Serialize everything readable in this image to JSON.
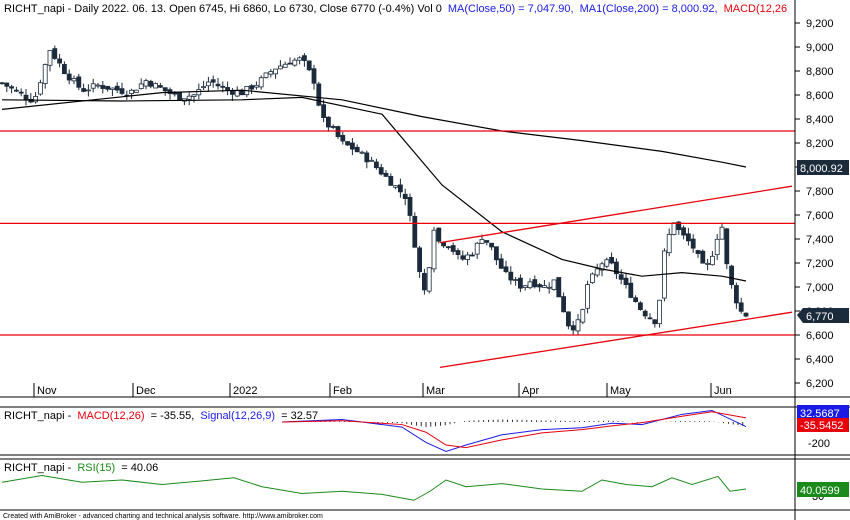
{
  "header": {
    "price_prefix": "RICHT_napi - Daily 2022. 06. 13. Open 6745, Hi 6860, Lo 6730, Close 6770 (-0.4%) Vol 0",
    "ma50": "MA(Close,50) = 7,047.90,",
    "ma200": "MA1(Close,200) = 8,000.92,",
    "macd_cut": "MACD(12,26"
  },
  "macd_header": {
    "prefix": "RICHT_napi -",
    "macd_label": "MACD(12,26)",
    "macd_value": "= -35.55,",
    "signal_label": "Signal(12,26,9)",
    "signal_value": "= 32.57"
  },
  "rsi_header": {
    "prefix": "RICHT_napi -",
    "rsi_label": "RSI(15)",
    "rsi_value": "= 40.06"
  },
  "footer": "Created with AmiBroker - advanced charting and technical analysis software. http://www.amibroker.com",
  "badges": {
    "ma200": "8,000.92",
    "close": "6,770",
    "signal": "32.5687",
    "macd": "-35.5452",
    "rsi": "40.0599"
  },
  "colors": {
    "background": "#ffffff",
    "up_candle": "#ffffff",
    "down_candle": "#1c2b3c",
    "ma_line": "#000000",
    "support_resistance": "#e8000b",
    "macd_line": "#1a1ae6",
    "signal_line": "#e8000b",
    "rsi_line": "#1a8a1a",
    "badge_dark": "#1c2b3c",
    "badge_blue": "#1a1ae6",
    "badge_red": "#e8000b",
    "badge_green": "#1a8a1a"
  },
  "chart_data": [
    {
      "type": "candlestick",
      "title": "RICHT_napi - Daily",
      "x_labels": [
        "Nov",
        "Dec",
        "2022",
        "Feb",
        "Mar",
        "Apr",
        "May",
        "Jun"
      ],
      "y_ticks": [
        "9,200",
        "9,000",
        "8,800",
        "8,600",
        "8,400",
        "8,200",
        "8,000",
        "7,800",
        "7,600",
        "7,400",
        "7,200",
        "7,000",
        "6,800",
        "6,600",
        "6,400",
        "6,200"
      ],
      "ylim": [
        6100,
        9300
      ],
      "series": [
        {
          "name": "RICHT_napi",
          "points": [
            [
              0,
              8700
            ],
            [
              8,
              8620
            ],
            [
              16,
              8550
            ],
            [
              24,
              8980
            ],
            [
              32,
              8780
            ],
            [
              40,
              8640
            ],
            [
              48,
              8680
            ],
            [
              56,
              8650
            ],
            [
              64,
              8620
            ],
            [
              72,
              8720
            ],
            [
              80,
              8650
            ],
            [
              88,
              8580
            ],
            [
              96,
              8600
            ],
            [
              104,
              8720
            ],
            [
              112,
              8640
            ],
            [
              120,
              8620
            ],
            [
              128,
              8700
            ],
            [
              136,
              8820
            ],
            [
              144,
              8880
            ],
            [
              150,
              8900
            ],
            [
              156,
              8720
            ],
            [
              160,
              8400
            ],
            [
              166,
              8300
            ],
            [
              170,
              8200
            ],
            [
              176,
              8150
            ],
            [
              184,
              8050
            ],
            [
              190,
              7950
            ],
            [
              196,
              7850
            ],
            [
              202,
              7750
            ],
            [
              206,
              7400
            ],
            [
              210,
              7000
            ],
            [
              212,
              6950
            ],
            [
              214,
              7250
            ],
            [
              216,
              7500
            ],
            [
              219,
              7350
            ],
            [
              222,
              7380
            ],
            [
              226,
              7300
            ],
            [
              229,
              7220
            ],
            [
              232,
              7250
            ],
            [
              236,
              7300
            ],
            [
              240,
              7420
            ],
            [
              244,
              7350
            ],
            [
              248,
              7200
            ],
            [
              252,
              7100
            ],
            [
              256,
              7050
            ],
            [
              260,
              7000
            ],
            [
              264,
              7050
            ],
            [
              268,
              7020
            ],
            [
              272,
              7000
            ],
            [
              276,
              7050
            ],
            [
              280,
              6850
            ],
            [
              284,
              6650
            ],
            [
              288,
              6700
            ],
            [
              290,
              6750
            ],
            [
              292,
              7000
            ],
            [
              296,
              7100
            ],
            [
              300,
              7200
            ],
            [
              304,
              7200
            ],
            [
              308,
              7100
            ],
            [
              312,
              7000
            ],
            [
              316,
              6900
            ],
            [
              320,
              6800
            ],
            [
              324,
              6750
            ],
            [
              328,
              6700
            ],
            [
              330,
              7200
            ],
            [
              333,
              7400
            ],
            [
              336,
              7550
            ],
            [
              339,
              7450
            ],
            [
              342,
              7400
            ],
            [
              345,
              7350
            ],
            [
              348,
              7250
            ],
            [
              351,
              7150
            ],
            [
              354,
              7200
            ],
            [
              357,
              7400
            ],
            [
              360,
              7500
            ],
            [
              363,
              7100
            ],
            [
              366,
              6950
            ],
            [
              369,
              6800
            ],
            [
              372,
              6770
            ]
          ]
        },
        {
          "name": "MA(Close,50)",
          "points": [
            [
              0,
              8560
            ],
            [
              60,
              8550
            ],
            [
              120,
              8560
            ],
            [
              150,
              8580
            ],
            [
              190,
              8440
            ],
            [
              220,
              7850
            ],
            [
              250,
              7460
            ],
            [
              280,
              7230
            ],
            [
              300,
              7150
            ],
            [
              320,
              7090
            ],
            [
              340,
              7120
            ],
            [
              360,
              7090
            ],
            [
              372,
              7050
            ]
          ]
        },
        {
          "name": "MA1(Close,200)",
          "points": [
            [
              0,
              8480
            ],
            [
              80,
              8620
            ],
            [
              120,
              8640
            ],
            [
              170,
              8560
            ],
            [
              210,
              8420
            ],
            [
              250,
              8300
            ],
            [
              290,
              8220
            ],
            [
              330,
              8130
            ],
            [
              360,
              8040
            ],
            [
              372,
              8000
            ]
          ]
        }
      ],
      "horizontal_levels": [
        8300,
        7530,
        6600
      ],
      "trend_channel": {
        "upper": [
          [
            219,
            7370
          ],
          [
            395,
            7840
          ]
        ],
        "lower": [
          [
            219,
            6330
          ],
          [
            395,
            6790
          ]
        ]
      }
    },
    {
      "type": "line",
      "title": "MACD",
      "y_ticks": [
        "-200"
      ],
      "series": [
        {
          "name": "MACD(12,26)",
          "points": [
            [
              140,
              0
            ],
            [
              170,
              20
            ],
            [
              200,
              -40
            ],
            [
              212,
              -160
            ],
            [
              222,
              -230
            ],
            [
              232,
              -180
            ],
            [
              250,
              -100
            ],
            [
              270,
              -60
            ],
            [
              290,
              -45
            ],
            [
              305,
              -10
            ],
            [
              320,
              -20
            ],
            [
              340,
              60
            ],
            [
              355,
              90
            ],
            [
              372,
              -35.55
            ]
          ]
        },
        {
          "name": "Signal(12,26,9)",
          "points": [
            [
              140,
              0
            ],
            [
              170,
              10
            ],
            [
              200,
              -20
            ],
            [
              212,
              -80
            ],
            [
              222,
              -180
            ],
            [
              232,
              -200
            ],
            [
              250,
              -140
            ],
            [
              270,
              -85
            ],
            [
              290,
              -60
            ],
            [
              305,
              -30
            ],
            [
              320,
              -5
            ],
            [
              340,
              45
            ],
            [
              355,
              80
            ],
            [
              372,
              32.57
            ]
          ]
        }
      ]
    },
    {
      "type": "line",
      "title": "RSI",
      "y_ticks": [
        "30"
      ],
      "series": [
        {
          "name": "RSI(15)",
          "points": [
            [
              0,
              55
            ],
            [
              20,
              70
            ],
            [
              40,
              55
            ],
            [
              60,
              60
            ],
            [
              80,
              50
            ],
            [
              100,
              58
            ],
            [
              116,
              65
            ],
            [
              130,
              45
            ],
            [
              150,
              30
            ],
            [
              170,
              35
            ],
            [
              190,
              28
            ],
            [
              206,
              15
            ],
            [
              214,
              35
            ],
            [
              222,
              60
            ],
            [
              232,
              45
            ],
            [
              250,
              52
            ],
            [
              270,
              40
            ],
            [
              290,
              35
            ],
            [
              300,
              60
            ],
            [
              312,
              50
            ],
            [
              325,
              45
            ],
            [
              335,
              65
            ],
            [
              345,
              50
            ],
            [
              358,
              68
            ],
            [
              364,
              35
            ],
            [
              372,
              40.06
            ]
          ]
        }
      ]
    }
  ]
}
